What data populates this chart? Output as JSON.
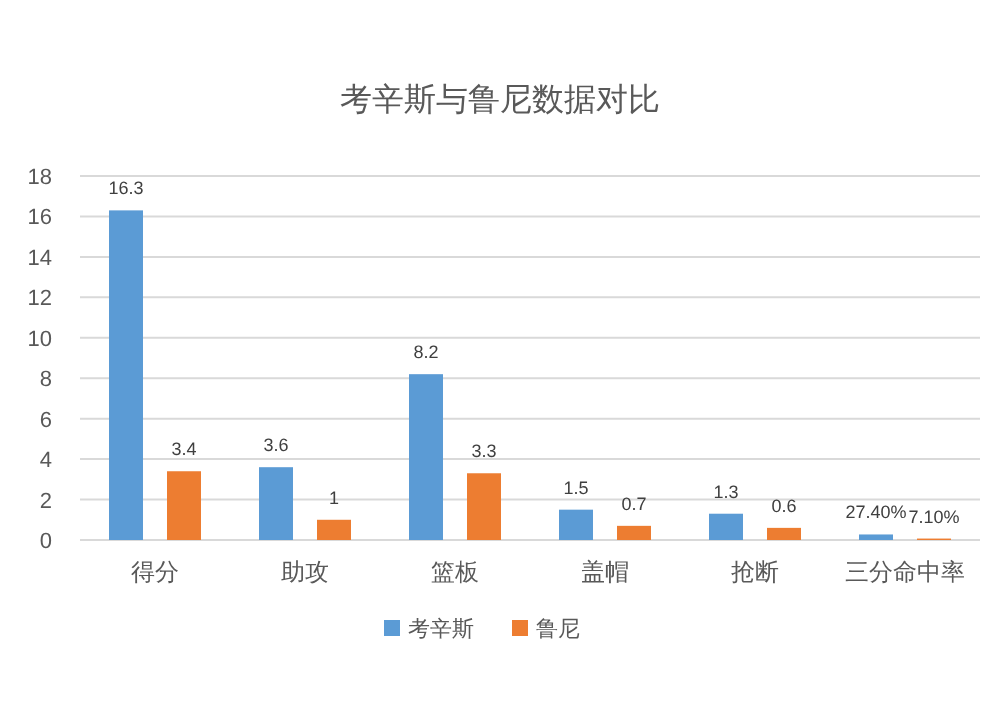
{
  "chart_data": {
    "type": "bar",
    "title": "考辛斯与鲁尼数据对比",
    "categories": [
      "得分",
      "助攻",
      "篮板",
      "盖帽",
      "抢断",
      "三分命中率"
    ],
    "series": [
      {
        "name": "考辛斯",
        "color": "#5b9bd5",
        "values": [
          16.3,
          3.6,
          8.2,
          1.5,
          1.3,
          0.274
        ],
        "value_labels": [
          "16.3",
          "3.6",
          "8.2",
          "1.5",
          "1.3",
          "27.40%"
        ]
      },
      {
        "name": "鲁尼",
        "color": "#ed7d31",
        "values": [
          3.4,
          1,
          3.3,
          0.7,
          0.6,
          0.071
        ],
        "value_labels": [
          "3.4",
          "1",
          "3.3",
          "0.7",
          "0.6",
          "7.10%"
        ]
      }
    ],
    "ylim": [
      0,
      18
    ],
    "yticks": [
      0,
      2,
      4,
      6,
      8,
      10,
      12,
      14,
      16,
      18
    ],
    "grid": "y",
    "legend": "bottom"
  }
}
